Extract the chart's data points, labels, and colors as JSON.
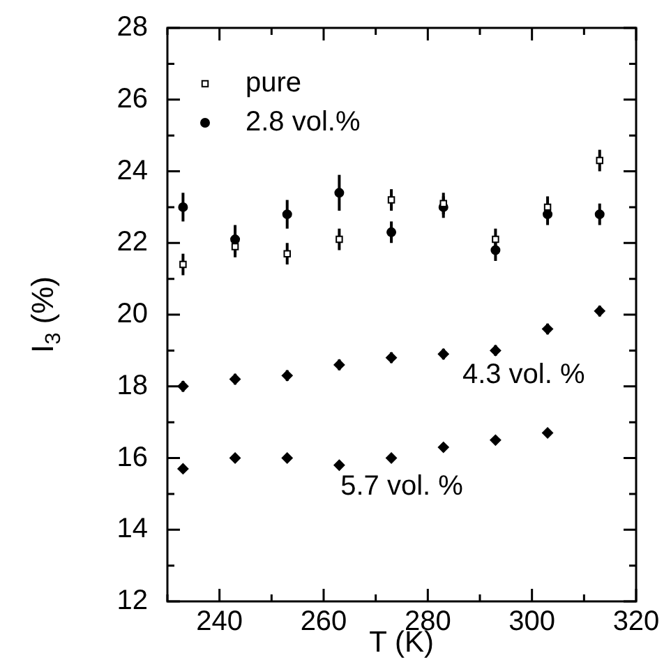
{
  "chart_data": {
    "type": "scatter",
    "xlabel": "T (K)",
    "ylabel": "I$_{3}$ (%)",
    "x": [
      233,
      243,
      253,
      263,
      273,
      283,
      293,
      303,
      313
    ],
    "series": [
      {
        "name": "pure",
        "color": "#000000",
        "marker": "square",
        "values": [
          21.4,
          21.9,
          21.7,
          22.1,
          23.2,
          23.1,
          22.1,
          23.0,
          24.3
        ],
        "errors": [
          0.3,
          0.3,
          0.3,
          0.3,
          0.3,
          0.3,
          0.3,
          0.3,
          0.3
        ]
      },
      {
        "name": "2.8 vol.%",
        "color": "#000000",
        "marker": "circle",
        "values": [
          23.0,
          22.1,
          22.8,
          23.4,
          22.3,
          23.0,
          21.8,
          22.8,
          22.8
        ],
        "errors": [
          0.4,
          0.4,
          0.4,
          0.5,
          0.3,
          0.3,
          0.3,
          0.3,
          0.3
        ]
      },
      {
        "color": "#000000",
        "marker": "diamond",
        "values": [
          18.0,
          18.2,
          18.3,
          18.6,
          18.8,
          18.9,
          19.0,
          19.6,
          20.1
        ],
        "errors": [
          0.15,
          0.15,
          0.15,
          0.15,
          0.15,
          0.15,
          0.15,
          0.15,
          0.15
        ]
      },
      {
        "color": "#000000",
        "marker": "diamond",
        "values": [
          15.7,
          16.0,
          16.0,
          15.8,
          16.0,
          16.3,
          16.5,
          16.7,
          null
        ],
        "errors": [
          0.12,
          0.12,
          0.12,
          0.12,
          0.12,
          0.12,
          0.12,
          0.12,
          null
        ]
      }
    ],
    "annotations": [
      "4.3 vol. %",
      "5.7 vol. %"
    ],
    "xlim": [
      230,
      320
    ],
    "xticks": [
      {
        "value": 230,
        "label": null
      },
      240,
      {
        "value": 250,
        "label": null
      },
      260,
      {
        "value": 270,
        "label": null
      },
      280,
      {
        "value": 290,
        "label": null
      },
      300,
      {
        "value": 310,
        "label": null
      },
      320
    ],
    "ylim": [
      12,
      28
    ],
    "yticks": [
      12,
      {
        "value": 13,
        "label": null
      },
      14,
      {
        "value": 15,
        "label": null
      },
      16,
      {
        "value": 17,
        "label": null
      },
      18,
      {
        "value": 19,
        "label": null
      },
      20,
      {
        "value": 21,
        "label": null
      },
      22,
      {
        "value": 23,
        "label": null
      },
      24,
      {
        "value": 25,
        "label": null
      },
      26,
      {
        "value": 27,
        "label": null
      },
      28
    ],
    "legend": "top left",
    "grid": false
  }
}
